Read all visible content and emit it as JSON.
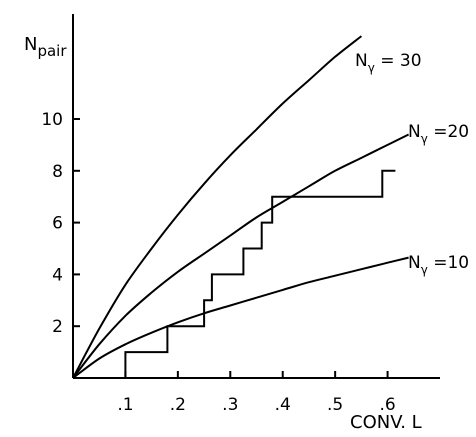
{
  "chart_data": {
    "type": "line",
    "ylabel": {
      "main": "N",
      "sub": "pair"
    },
    "xlabel": "CONV. L",
    "xlim": [
      0,
      0.7
    ],
    "ylim": [
      0,
      14
    ],
    "x_ticks": [
      {
        "value": 0.1,
        "label": ".1"
      },
      {
        "value": 0.2,
        "label": ".2"
      },
      {
        "value": 0.3,
        "label": ".3"
      },
      {
        "value": 0.4,
        "label": ".4"
      },
      {
        "value": 0.5,
        "label": ".5"
      },
      {
        "value": 0.6,
        "label": ".6"
      }
    ],
    "y_ticks": [
      {
        "value": 2,
        "label": "2"
      },
      {
        "value": 4,
        "label": "4"
      },
      {
        "value": 6,
        "label": "6"
      },
      {
        "value": 8,
        "label": "8"
      },
      {
        "value": 10,
        "label": "10"
      }
    ],
    "grid": false,
    "series": [
      {
        "name": "N_γ = 30",
        "label": {
          "main": "N",
          "sub": "γ",
          "rest": " = 30"
        },
        "type": "line",
        "x": [
          0,
          0.05,
          0.1,
          0.15,
          0.2,
          0.25,
          0.3,
          0.35,
          0.4,
          0.45,
          0.5,
          0.55
        ],
        "y": [
          0,
          1.9,
          3.6,
          5.0,
          6.3,
          7.5,
          8.6,
          9.6,
          10.6,
          11.5,
          12.4,
          13.2
        ]
      },
      {
        "name": "N_γ = 20",
        "label": {
          "main": "N",
          "sub": "γ",
          "rest": " =20"
        },
        "type": "line",
        "x": [
          0,
          0.05,
          0.1,
          0.15,
          0.2,
          0.25,
          0.3,
          0.35,
          0.4,
          0.45,
          0.5,
          0.55,
          0.6,
          0.64
        ],
        "y": [
          0,
          1.3,
          2.4,
          3.3,
          4.1,
          4.8,
          5.5,
          6.2,
          6.8,
          7.4,
          8.0,
          8.5,
          9.0,
          9.4
        ]
      },
      {
        "name": "N_γ = 10",
        "label": {
          "main": "N",
          "sub": "γ",
          "rest": " =10"
        },
        "type": "line",
        "x": [
          0,
          0.05,
          0.1,
          0.15,
          0.2,
          0.25,
          0.3,
          0.35,
          0.4,
          0.45,
          0.5,
          0.55,
          0.6,
          0.64
        ],
        "y": [
          0,
          0.75,
          1.3,
          1.75,
          2.15,
          2.5,
          2.8,
          3.1,
          3.4,
          3.7,
          3.95,
          4.2,
          4.45,
          4.65
        ]
      },
      {
        "name": "data",
        "type": "step",
        "points": [
          [
            0.1,
            0
          ],
          [
            0.1,
            1
          ],
          [
            0.18,
            1
          ],
          [
            0.18,
            2
          ],
          [
            0.25,
            2
          ],
          [
            0.25,
            3
          ],
          [
            0.265,
            3
          ],
          [
            0.265,
            4
          ],
          [
            0.325,
            4
          ],
          [
            0.325,
            5
          ],
          [
            0.36,
            5
          ],
          [
            0.36,
            6
          ],
          [
            0.38,
            6
          ],
          [
            0.38,
            7
          ],
          [
            0.59,
            7
          ],
          [
            0.59,
            8
          ],
          [
            0.615,
            8
          ]
        ]
      }
    ]
  }
}
